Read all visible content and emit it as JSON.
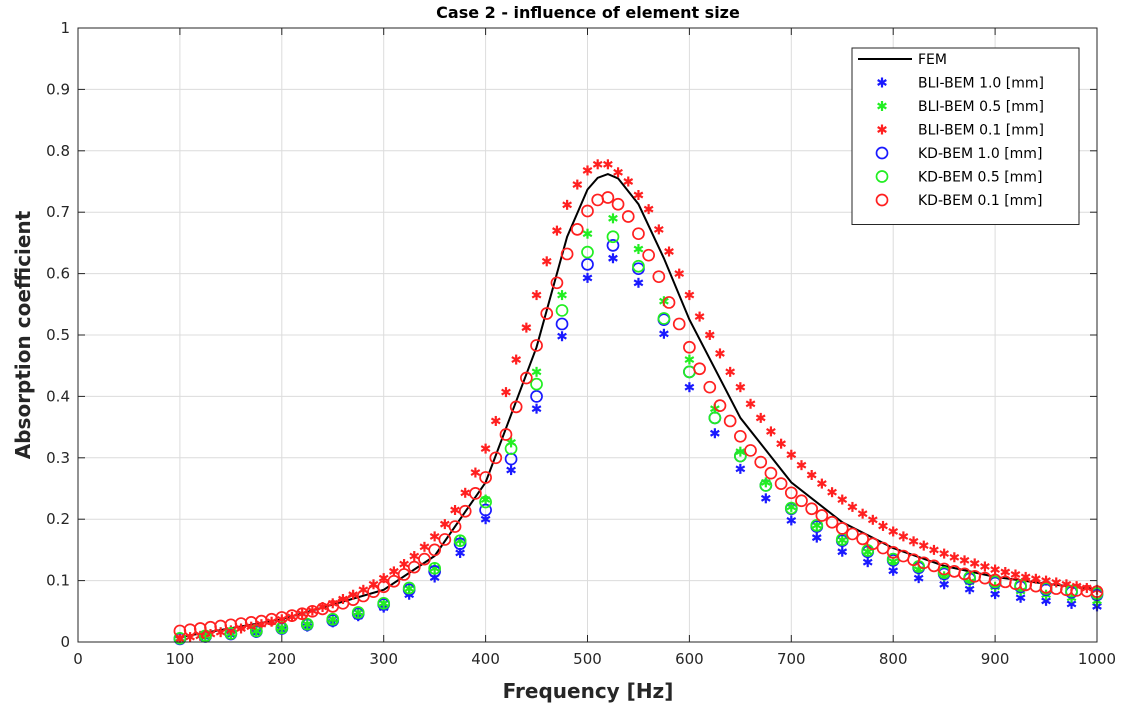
{
  "chart_data": {
    "type": "line",
    "title": "Case 2 - influence of element size",
    "xlabel": "Frequency [Hz]",
    "ylabel": "Absorption coefficient",
    "xlim": [
      0,
      1000
    ],
    "ylim": [
      0,
      1
    ],
    "xticks": [
      0,
      100,
      200,
      300,
      400,
      500,
      600,
      700,
      800,
      900,
      1000
    ],
    "yticks": [
      0,
      0.1,
      0.2,
      0.3,
      0.4,
      0.5,
      0.6,
      0.7,
      0.8,
      0.9,
      1
    ],
    "ytick_labels": [
      "0",
      "0.1",
      "0.2",
      "0.3",
      "0.4",
      "0.5",
      "0.6",
      "0.7",
      "0.8",
      "0.9",
      "1"
    ],
    "grid": true,
    "legend_position": "top-right",
    "series": [
      {
        "name": "FEM",
        "marker": "line",
        "color": "#000000",
        "x": [
          100,
          200,
          300,
          350,
          400,
          450,
          480,
          500,
          510,
          520,
          530,
          550,
          575,
          600,
          650,
          700,
          750,
          800,
          850,
          900,
          950,
          1000
        ],
        "y": [
          0.008,
          0.037,
          0.085,
          0.14,
          0.26,
          0.48,
          0.66,
          0.737,
          0.756,
          0.762,
          0.755,
          0.713,
          0.625,
          0.525,
          0.365,
          0.26,
          0.195,
          0.153,
          0.124,
          0.106,
          0.095,
          0.086
        ]
      },
      {
        "name": "BLI-BEM 1.0 [mm]",
        "marker": "asterisk",
        "color": "#1a1aff",
        "x": [
          100,
          125,
          150,
          175,
          200,
          225,
          250,
          275,
          300,
          325,
          350,
          375,
          400,
          425,
          450,
          475,
          500,
          525,
          550,
          575,
          600,
          625,
          650,
          675,
          700,
          725,
          750,
          775,
          800,
          825,
          850,
          875,
          900,
          925,
          950,
          975,
          1000
        ],
        "y": [
          0.005,
          0.008,
          0.012,
          0.015,
          0.02,
          0.025,
          0.032,
          0.042,
          0.056,
          0.077,
          0.105,
          0.145,
          0.2,
          0.28,
          0.38,
          0.498,
          0.593,
          0.625,
          0.585,
          0.502,
          0.415,
          0.34,
          0.282,
          0.234,
          0.198,
          0.17,
          0.147,
          0.13,
          0.116,
          0.104,
          0.094,
          0.086,
          0.078,
          0.072,
          0.067,
          0.062,
          0.058
        ]
      },
      {
        "name": "BLI-BEM 0.5 [mm]",
        "marker": "asterisk",
        "color": "#22ee22",
        "x": [
          100,
          125,
          150,
          175,
          200,
          225,
          250,
          275,
          300,
          325,
          350,
          375,
          400,
          425,
          450,
          475,
          500,
          525,
          550,
          575,
          600,
          625,
          650,
          675,
          700,
          725,
          750,
          775,
          800,
          825,
          850,
          875,
          900,
          925,
          950,
          975,
          1000
        ],
        "y": [
          0.006,
          0.01,
          0.014,
          0.018,
          0.023,
          0.029,
          0.037,
          0.048,
          0.063,
          0.087,
          0.12,
          0.165,
          0.232,
          0.325,
          0.44,
          0.565,
          0.665,
          0.69,
          0.64,
          0.555,
          0.46,
          0.38,
          0.31,
          0.26,
          0.22,
          0.19,
          0.166,
          0.147,
          0.131,
          0.118,
          0.107,
          0.098,
          0.09,
          0.083,
          0.077,
          0.072,
          0.067
        ]
      },
      {
        "name": "BLI-BEM 0.1 [mm]",
        "marker": "asterisk",
        "color": "#ff2020",
        "x": [
          100,
          110,
          120,
          130,
          140,
          150,
          160,
          170,
          180,
          190,
          200,
          210,
          220,
          230,
          240,
          250,
          260,
          270,
          280,
          290,
          300,
          310,
          320,
          330,
          340,
          350,
          360,
          370,
          380,
          390,
          400,
          410,
          420,
          430,
          440,
          450,
          460,
          470,
          480,
          490,
          500,
          510,
          520,
          530,
          540,
          550,
          560,
          570,
          580,
          590,
          600,
          610,
          620,
          630,
          640,
          650,
          660,
          670,
          680,
          690,
          700,
          710,
          720,
          730,
          740,
          750,
          760,
          770,
          780,
          790,
          800,
          810,
          820,
          830,
          840,
          850,
          860,
          870,
          880,
          890,
          900,
          910,
          920,
          930,
          940,
          950,
          960,
          970,
          980,
          990,
          1000
        ],
        "y": [
          0.005,
          0.008,
          0.01,
          0.013,
          0.016,
          0.019,
          0.022,
          0.025,
          0.029,
          0.033,
          0.037,
          0.041,
          0.046,
          0.051,
          0.057,
          0.063,
          0.07,
          0.077,
          0.085,
          0.094,
          0.104,
          0.115,
          0.127,
          0.14,
          0.155,
          0.172,
          0.192,
          0.215,
          0.243,
          0.276,
          0.315,
          0.36,
          0.407,
          0.46,
          0.512,
          0.565,
          0.62,
          0.67,
          0.712,
          0.745,
          0.768,
          0.778,
          0.778,
          0.765,
          0.75,
          0.728,
          0.705,
          0.672,
          0.636,
          0.6,
          0.565,
          0.53,
          0.5,
          0.47,
          0.44,
          0.415,
          0.388,
          0.365,
          0.343,
          0.323,
          0.305,
          0.288,
          0.272,
          0.258,
          0.244,
          0.232,
          0.22,
          0.209,
          0.199,
          0.189,
          0.18,
          0.172,
          0.164,
          0.157,
          0.15,
          0.144,
          0.138,
          0.133,
          0.128,
          0.123,
          0.118,
          0.114,
          0.11,
          0.106,
          0.103,
          0.1,
          0.097,
          0.094,
          0.091,
          0.088,
          0.085
        ]
      },
      {
        "name": "KD-BEM 1.0 [mm]",
        "marker": "circle",
        "color": "#1a1aff",
        "x": [
          100,
          125,
          150,
          175,
          200,
          225,
          250,
          275,
          300,
          325,
          350,
          375,
          400,
          425,
          450,
          475,
          500,
          525,
          550,
          575,
          600,
          625,
          650,
          675,
          700,
          725,
          750,
          775,
          800,
          825,
          850,
          875,
          900,
          925,
          950,
          975,
          1000
        ],
        "y": [
          0.005,
          0.009,
          0.013,
          0.017,
          0.022,
          0.028,
          0.035,
          0.046,
          0.061,
          0.085,
          0.115,
          0.16,
          0.215,
          0.298,
          0.4,
          0.518,
          0.615,
          0.646,
          0.608,
          0.525,
          0.44,
          0.365,
          0.303,
          0.255,
          0.217,
          0.188,
          0.165,
          0.147,
          0.133,
          0.121,
          0.111,
          0.103,
          0.096,
          0.09,
          0.085,
          0.081,
          0.077
        ]
      },
      {
        "name": "KD-BEM 0.5 [mm]",
        "marker": "circle",
        "color": "#22ee22",
        "x": [
          100,
          125,
          150,
          175,
          200,
          225,
          250,
          275,
          300,
          325,
          350,
          375,
          400,
          425,
          450,
          475,
          500,
          525,
          550,
          575,
          600,
          625,
          650,
          675,
          700,
          725,
          750,
          775,
          800,
          825,
          850,
          875,
          900,
          925,
          950,
          975,
          1000
        ],
        "y": [
          0.006,
          0.01,
          0.014,
          0.018,
          0.023,
          0.029,
          0.037,
          0.048,
          0.063,
          0.088,
          0.12,
          0.165,
          0.228,
          0.315,
          0.42,
          0.54,
          0.635,
          0.66,
          0.612,
          0.527,
          0.44,
          0.365,
          0.303,
          0.255,
          0.218,
          0.19,
          0.167,
          0.149,
          0.135,
          0.123,
          0.113,
          0.105,
          0.098,
          0.092,
          0.087,
          0.083,
          0.079
        ]
      },
      {
        "name": "KD-BEM 0.1 [mm]",
        "marker": "circle",
        "color": "#ff2020",
        "x": [
          100,
          110,
          120,
          130,
          140,
          150,
          160,
          170,
          180,
          190,
          200,
          210,
          220,
          230,
          240,
          250,
          260,
          270,
          280,
          290,
          300,
          310,
          320,
          330,
          340,
          350,
          360,
          370,
          380,
          390,
          400,
          410,
          420,
          430,
          440,
          450,
          460,
          470,
          480,
          490,
          500,
          510,
          520,
          530,
          540,
          550,
          560,
          570,
          580,
          590,
          600,
          610,
          620,
          630,
          640,
          650,
          660,
          670,
          680,
          690,
          700,
          710,
          720,
          730,
          740,
          750,
          760,
          770,
          780,
          790,
          800,
          810,
          820,
          830,
          840,
          850,
          860,
          870,
          880,
          890,
          900,
          910,
          920,
          930,
          940,
          950,
          960,
          970,
          980,
          990,
          1000
        ],
        "y": [
          0.018,
          0.02,
          0.022,
          0.024,
          0.026,
          0.028,
          0.03,
          0.032,
          0.034,
          0.037,
          0.04,
          0.043,
          0.046,
          0.05,
          0.054,
          0.058,
          0.063,
          0.069,
          0.075,
          0.082,
          0.09,
          0.099,
          0.11,
          0.122,
          0.135,
          0.15,
          0.167,
          0.188,
          0.213,
          0.242,
          0.268,
          0.3,
          0.338,
          0.383,
          0.43,
          0.483,
          0.535,
          0.585,
          0.632,
          0.672,
          0.702,
          0.72,
          0.724,
          0.713,
          0.693,
          0.665,
          0.63,
          0.595,
          0.553,
          0.518,
          0.48,
          0.445,
          0.415,
          0.385,
          0.36,
          0.335,
          0.312,
          0.293,
          0.275,
          0.258,
          0.243,
          0.23,
          0.217,
          0.206,
          0.195,
          0.185,
          0.176,
          0.168,
          0.16,
          0.153,
          0.146,
          0.14,
          0.134,
          0.129,
          0.124,
          0.119,
          0.115,
          0.111,
          0.107,
          0.104,
          0.101,
          0.098,
          0.095,
          0.093,
          0.091,
          0.089,
          0.087,
          0.085,
          0.084,
          0.083,
          0.082
        ]
      }
    ]
  }
}
